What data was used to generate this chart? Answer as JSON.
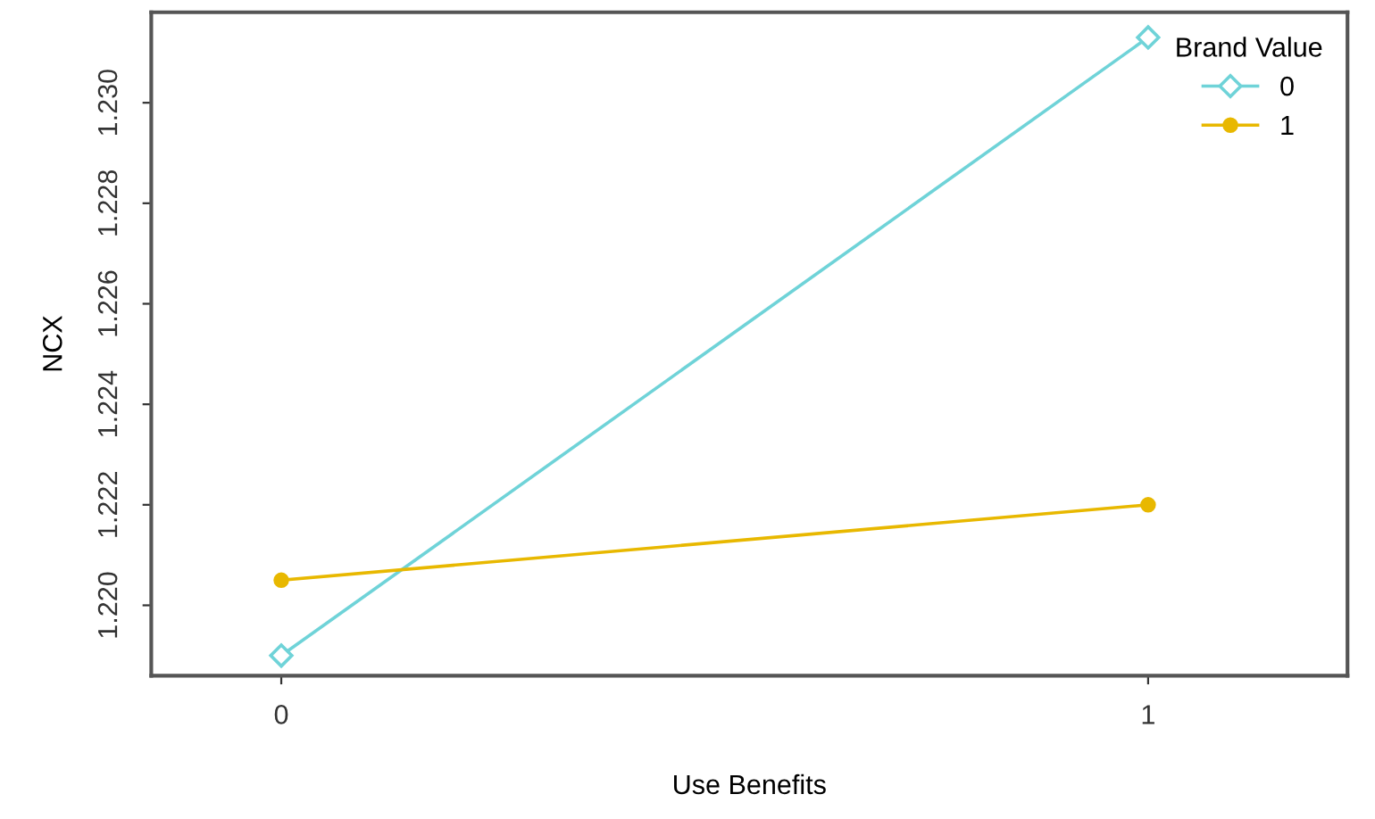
{
  "chart_data": {
    "type": "line",
    "xlabel": "Use Benefits",
    "ylabel": "NCX",
    "legend_title": "Brand Value",
    "legend": "top right",
    "x": [
      0,
      1
    ],
    "xlim": [
      -0.15,
      1.23
    ],
    "xticks": [
      0,
      1
    ],
    "ylim": [
      1.2186,
      1.2318
    ],
    "yticks": [
      {
        "value": 1.22,
        "label": "1.220"
      },
      {
        "value": 1.222,
        "label": "1.222"
      },
      {
        "value": 1.224,
        "label": "1.224"
      },
      {
        "value": 1.226,
        "label": "1.226"
      },
      {
        "value": 1.228,
        "label": "1.228"
      },
      {
        "value": 1.23,
        "label": "1.230"
      }
    ],
    "grid": false,
    "series": [
      {
        "name": "0",
        "color": "#6fd3d8",
        "marker": "diamond",
        "values": [
          1.219,
          1.2313
        ]
      },
      {
        "name": "1",
        "color": "#e8b800",
        "marker": "circle",
        "values": [
          1.2205,
          1.222
        ]
      }
    ]
  }
}
